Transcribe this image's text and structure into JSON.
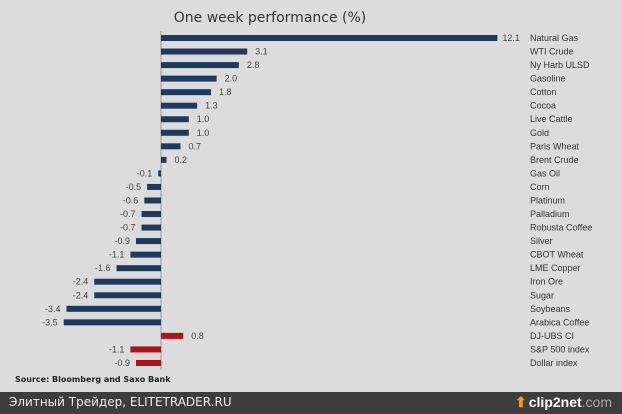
{
  "chart_data": {
    "type": "bar",
    "orientation": "horizontal",
    "title": "One week performance (%)",
    "source": "Source: Bloomberg and Saxo Bank",
    "categories": [
      "Natural Gas",
      "WTI Crude",
      "Ny Harb ULSD",
      "Gasoline",
      "Cotton",
      "Cocoa",
      "Live Cattle",
      "Gold",
      "Paris Wheat",
      "Brent Crude",
      "Gas Oil",
      "Corn",
      "Platinum",
      "Palladium",
      "Robusta Coffee",
      "Silver",
      "CBOT Wheat",
      "LME Copper",
      "Iron Ore",
      "Sugar",
      "Soybeans",
      "Arabica Coffee",
      "DJ-UBS CI",
      "S&P 500 index",
      "Dollar index"
    ],
    "values": [
      12.1,
      3.1,
      2.8,
      2.0,
      1.8,
      1.3,
      1.0,
      1.0,
      0.7,
      0.2,
      -0.1,
      -0.5,
      -0.6,
      -0.7,
      -0.7,
      -0.9,
      -1.1,
      -1.6,
      -2.4,
      -2.4,
      -3.4,
      -3.5,
      0.8,
      -1.1,
      -0.9
    ],
    "value_labels": [
      "12.1",
      "3.1",
      "2.8",
      "2.0",
      "1.8",
      "1.3",
      "1.0",
      "1.0",
      "0.7",
      "0.2",
      "-0.1",
      "-0.5",
      "-0.6",
      "-0.7",
      "-0.7",
      "-0.9",
      "-1.1",
      "-1.6",
      "-2.4",
      "-2.4",
      "-3.4",
      "-3.5",
      "0.8",
      "-1.1",
      "-0.9"
    ],
    "series_colors": {
      "commodities": "#1f3a5f",
      "indices": "#b0121b"
    },
    "index_categories": [
      "DJ-UBS CI",
      "S&P 500 index",
      "Dollar index"
    ],
    "xlim": [
      -3.7,
      12.5
    ],
    "grid": false,
    "legend": "none"
  },
  "footer": {
    "text": "Элитный Трейдер, ELITETRADER.RU",
    "brand_main": "clip2net",
    "brand_dom": ".com"
  }
}
